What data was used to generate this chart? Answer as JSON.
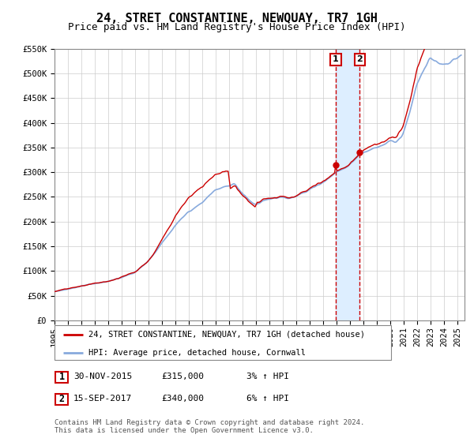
{
  "title": "24, STRET CONSTANTINE, NEWQUAY, TR7 1GH",
  "subtitle": "Price paid vs. HM Land Registry's House Price Index (HPI)",
  "ylim": [
    0,
    550000
  ],
  "yticks": [
    0,
    50000,
    100000,
    150000,
    200000,
    250000,
    300000,
    350000,
    400000,
    450000,
    500000,
    550000
  ],
  "ytick_labels": [
    "£0",
    "£50K",
    "£100K",
    "£150K",
    "£200K",
    "£250K",
    "£300K",
    "£350K",
    "£400K",
    "£450K",
    "£500K",
    "£550K"
  ],
  "xlim_start": 1995.0,
  "xlim_end": 2025.5,
  "line1_color": "#cc0000",
  "line2_color": "#88aadd",
  "marker_color": "#cc0000",
  "vline_color": "#cc0000",
  "vshade_color": "#ddeeff",
  "transaction1_year": 2015.917,
  "transaction1_price": 315000,
  "transaction2_year": 2017.708,
  "transaction2_price": 340000,
  "legend1_text": "24, STRET CONSTANTINE, NEWQUAY, TR7 1GH (detached house)",
  "legend2_text": "HPI: Average price, detached house, Cornwall",
  "table_row1": [
    "1",
    "30-NOV-2015",
    "£315,000",
    "3% ↑ HPI"
  ],
  "table_row2": [
    "2",
    "15-SEP-2017",
    "£340,000",
    "6% ↑ HPI"
  ],
  "footnote1": "Contains HM Land Registry data © Crown copyright and database right 2024.",
  "footnote2": "This data is licensed under the Open Government Licence v3.0.",
  "background_color": "#ffffff",
  "grid_color": "#cccccc",
  "title_fontsize": 11,
  "subtitle_fontsize": 9,
  "tick_fontsize": 7.5
}
